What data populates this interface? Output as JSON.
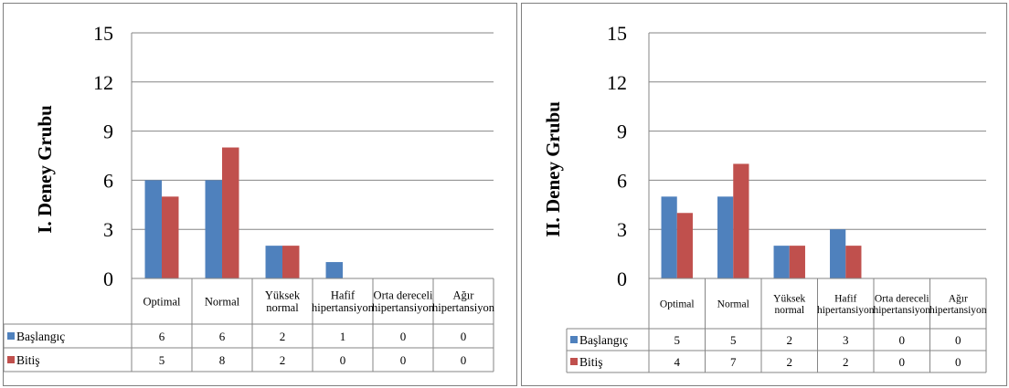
{
  "colors": {
    "baslangic": "#4f81bd",
    "bitis": "#c0504d",
    "grid": "#868686",
    "border": "#7f7f7f",
    "text": "#000000"
  },
  "chart_data": [
    {
      "type": "bar",
      "ylabel": "I. Deney Grubu",
      "categories": [
        "Optimal",
        "Normal",
        "Yüksek normal",
        "Hafif hipertansiyon",
        "Orta dereceli hipertansiyon",
        "Ağır hipertansiyon"
      ],
      "series": [
        {
          "name": "Başlangıç",
          "values": [
            6,
            6,
            2,
            1,
            0,
            0
          ]
        },
        {
          "name": "Bitiş",
          "values": [
            5,
            8,
            2,
            0,
            0,
            0
          ]
        }
      ],
      "ylim": [
        0,
        15
      ],
      "yticks": [
        "0",
        "3",
        "6",
        "9",
        "12",
        "15"
      ],
      "grid": true,
      "legend": "data-table"
    },
    {
      "type": "bar",
      "ylabel": "II. Deney Grubu",
      "categories": [
        "Optimal",
        "Normal",
        "Yüksek normal",
        "Hafif hipertansiyon",
        "Orta dereceli hipertansiyon",
        "Ağır hipertansiyon"
      ],
      "series": [
        {
          "name": "Başlangıç",
          "values": [
            5,
            5,
            2,
            3,
            0,
            0
          ]
        },
        {
          "name": "Bitiş",
          "values": [
            4,
            7,
            2,
            2,
            0,
            0
          ]
        }
      ],
      "ylim": [
        0,
        15
      ],
      "yticks": [
        "0",
        "3",
        "6",
        "9",
        "12",
        "15"
      ],
      "grid": true,
      "legend": "data-table"
    }
  ]
}
